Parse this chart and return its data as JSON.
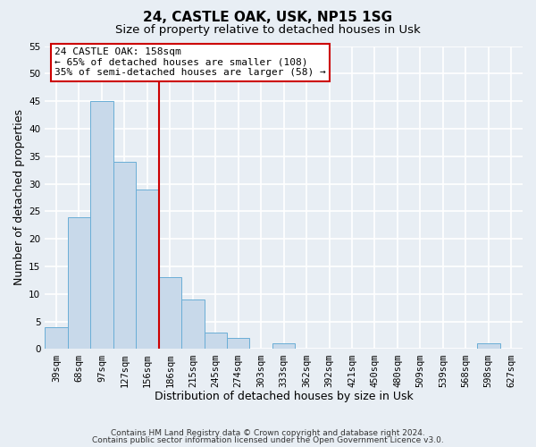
{
  "title": "24, CASTLE OAK, USK, NP15 1SG",
  "subtitle": "Size of property relative to detached houses in Usk",
  "xlabel": "Distribution of detached houses by size in Usk",
  "ylabel": "Number of detached properties",
  "bin_labels": [
    "39sqm",
    "68sqm",
    "97sqm",
    "127sqm",
    "156sqm",
    "186sqm",
    "215sqm",
    "245sqm",
    "274sqm",
    "303sqm",
    "333sqm",
    "362sqm",
    "392sqm",
    "421sqm",
    "450sqm",
    "480sqm",
    "509sqm",
    "539sqm",
    "568sqm",
    "598sqm",
    "627sqm"
  ],
  "bar_values": [
    4,
    24,
    45,
    34,
    29,
    13,
    9,
    3,
    2,
    0,
    1,
    0,
    0,
    0,
    0,
    0,
    0,
    0,
    0,
    1,
    0
  ],
  "bar_color": "#c8d9ea",
  "bar_edge_color": "#6aaed6",
  "ylim": [
    0,
    55
  ],
  "yticks": [
    0,
    5,
    10,
    15,
    20,
    25,
    30,
    35,
    40,
    45,
    50,
    55
  ],
  "property_line_x": 4.5,
  "annotation_line1": "24 CASTLE OAK: 158sqm",
  "annotation_line2": "← 65% of detached houses are smaller (108)",
  "annotation_line3": "35% of semi-detached houses are larger (58) →",
  "annotation_box_color": "#ffffff",
  "annotation_box_edge_color": "#cc0000",
  "vline_color": "#cc0000",
  "footer_line1": "Contains HM Land Registry data © Crown copyright and database right 2024.",
  "footer_line2": "Contains public sector information licensed under the Open Government Licence v3.0.",
  "background_color": "#e8eef4",
  "grid_color": "#ffffff",
  "title_fontsize": 11,
  "subtitle_fontsize": 9.5,
  "label_fontsize": 9,
  "tick_fontsize": 7.5,
  "footer_fontsize": 6.5,
  "annotation_fontsize": 8
}
